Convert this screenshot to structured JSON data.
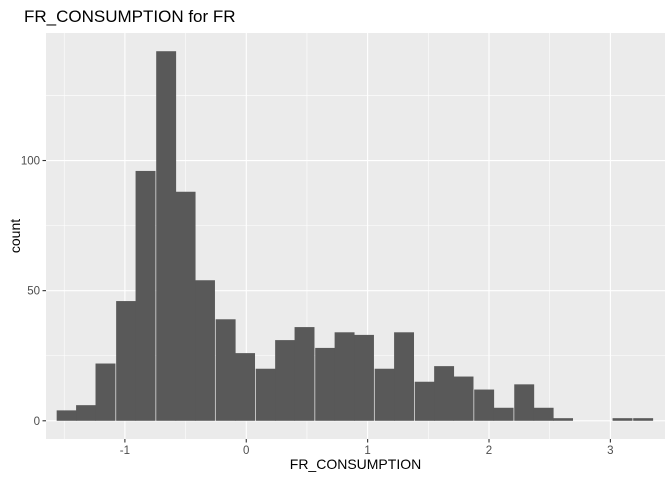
{
  "chart_data": {
    "type": "bar",
    "title": "FR_CONSUMPTION  for FR",
    "xlabel": "FR_CONSUMPTION",
    "ylabel": "count",
    "bin_width": 0.1641,
    "x_ticks": [
      -1,
      0,
      1,
      2,
      3
    ],
    "x_tick_labels": [
      "-1",
      "0",
      "1",
      "2",
      "3"
    ],
    "y_ticks": [
      0,
      50,
      100
    ],
    "y_tick_labels": [
      "0",
      "50",
      "100"
    ],
    "xlim": [
      -1.65,
      3.45
    ],
    "ylim": [
      -7,
      149
    ],
    "bins": [
      {
        "x": -1.48,
        "count": 4
      },
      {
        "x": -1.32,
        "count": 6
      },
      {
        "x": -1.16,
        "count": 22
      },
      {
        "x": -0.99,
        "count": 46
      },
      {
        "x": -0.83,
        "count": 96
      },
      {
        "x": -0.66,
        "count": 142
      },
      {
        "x": -0.5,
        "count": 88
      },
      {
        "x": -0.34,
        "count": 54
      },
      {
        "x": -0.17,
        "count": 39
      },
      {
        "x": -0.01,
        "count": 26
      },
      {
        "x": 0.16,
        "count": 20
      },
      {
        "x": 0.32,
        "count": 31
      },
      {
        "x": 0.48,
        "count": 36
      },
      {
        "x": 0.65,
        "count": 28
      },
      {
        "x": 0.81,
        "count": 34
      },
      {
        "x": 0.97,
        "count": 33
      },
      {
        "x": 1.14,
        "count": 20
      },
      {
        "x": 1.3,
        "count": 34
      },
      {
        "x": 1.47,
        "count": 15
      },
      {
        "x": 1.63,
        "count": 21
      },
      {
        "x": 1.79,
        "count": 17
      },
      {
        "x": 1.96,
        "count": 12
      },
      {
        "x": 2.12,
        "count": 5
      },
      {
        "x": 2.29,
        "count": 14
      },
      {
        "x": 2.45,
        "count": 5
      },
      {
        "x": 2.61,
        "count": 1
      },
      {
        "x": 2.78,
        "count": 0
      },
      {
        "x": 2.94,
        "count": 0
      },
      {
        "x": 3.1,
        "count": 1
      },
      {
        "x": 3.27,
        "count": 1
      }
    ],
    "grid": true,
    "colors": {
      "panel": "#ebebeb",
      "grid_major": "#ffffff",
      "bar": "#595959",
      "tick_label": "#4d4d4d",
      "tick": "#333333"
    }
  }
}
